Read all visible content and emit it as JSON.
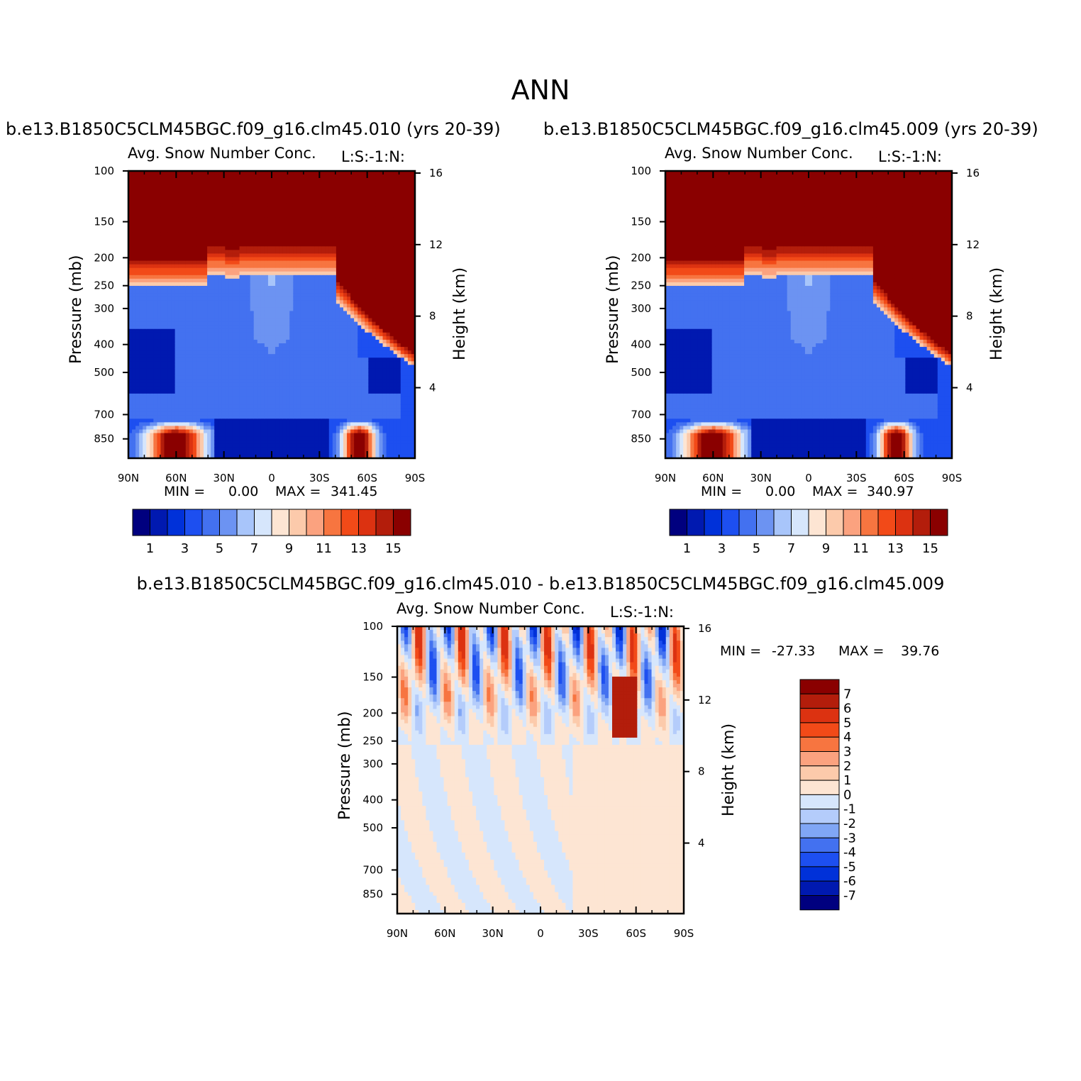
{
  "title": "ANN",
  "panels": [
    {
      "run_title": "b.e13.B1850C5CLM45BGC.f09_g16.clm45.010 (yrs 20-39)",
      "variable_title": "Avg. Snow Number Conc.",
      "corner_label": "L:S:-1:N:",
      "min_label": "MIN =",
      "min_value": "0.00",
      "max_label": "MAX =",
      "max_value": "341.45"
    },
    {
      "run_title": "b.e13.B1850C5CLM45BGC.f09_g16.clm45.009 (yrs 20-39)",
      "variable_title": "Avg. Snow Number Conc.",
      "corner_label": "L:S:-1:N:",
      "min_label": "MIN =",
      "min_value": "0.00",
      "max_label": "MAX =",
      "max_value": "340.97"
    },
    {
      "run_title": "b.e13.B1850C5CLM45BGC.f09_g16.clm45.010 - b.e13.B1850C5CLM45BGC.f09_g16.clm45.009",
      "variable_title": "Avg. Snow Number Conc.",
      "corner_label": "L:S:-1:N:",
      "min_label": "MIN =",
      "min_value": "-27.33",
      "max_label": "MAX =",
      "max_value": "39.76"
    }
  ],
  "axes": {
    "ylabel_left": "Pressure (mb)",
    "ylabel_right": "Height (km)",
    "x_ticks": [
      "90N",
      "60N",
      "30N",
      "0",
      "30S",
      "60S",
      "90S"
    ],
    "pressure_ticks": [
      "100",
      "150",
      "200",
      "250",
      "300",
      "400",
      "500",
      "700",
      "850"
    ],
    "height_ticks": [
      "16",
      "12",
      "8",
      "4"
    ]
  },
  "colors": {
    "abs": [
      "#00007f",
      "#0019b0",
      "#0031d9",
      "#1d4ff0",
      "#4371f0",
      "#6c93f2",
      "#a8c5fa",
      "#d6e6fc",
      "#fde5d3",
      "#fccaab",
      "#fba27f",
      "#f77540",
      "#f24a18",
      "#dc3211",
      "#b31d0b",
      "#8a0000"
    ],
    "diff": [
      "#00007f",
      "#0019b0",
      "#0031d9",
      "#1d4ff0",
      "#4371f0",
      "#80a6f5",
      "#b4ccfb",
      "#d6e6fc",
      "#fde5d3",
      "#fccaab",
      "#fba27f",
      "#f77540",
      "#f24a18",
      "#dc3211",
      "#b31d0b",
      "#8a0000"
    ]
  },
  "colorbars": {
    "abs_labels": [
      "1",
      "3",
      "5",
      "7",
      "9",
      "11",
      "13",
      "15"
    ],
    "diff_labels": [
      "7",
      "6",
      "5",
      "4",
      "3",
      "2",
      "1",
      "0",
      "-1",
      "-2",
      "-3",
      "-4",
      "-5",
      "-6",
      "-7"
    ]
  },
  "chart_data": [
    {
      "type": "heatmap",
      "title": "Avg. Snow Number Conc.",
      "subtitle": "b.e13.B1850C5CLM45BGC.f09_g16.clm45.010 (yrs 20-39)",
      "xlabel": "",
      "ylabel": "Pressure (mb)",
      "ylabel_right": "Height (km)",
      "x_ticks": [
        "90N",
        "60N",
        "30N",
        "0",
        "30S",
        "60S",
        "90S"
      ],
      "y_ticks": [
        100,
        150,
        200,
        250,
        300,
        400,
        500,
        700,
        850
      ],
      "y_right_ticks": [
        16,
        12,
        8,
        4
      ],
      "y_scale": "log-pressure",
      "levels": [
        1,
        2,
        3,
        4,
        5,
        6,
        7,
        8,
        9,
        10,
        11,
        12,
        13,
        14,
        15
      ],
      "min": 0.0,
      "max": 341.45
    },
    {
      "type": "heatmap",
      "title": "Avg. Snow Number Conc.",
      "subtitle": "b.e13.B1850C5CLM45BGC.f09_g16.clm45.009 (yrs 20-39)",
      "xlabel": "",
      "ylabel": "Pressure (mb)",
      "ylabel_right": "Height (km)",
      "x_ticks": [
        "90N",
        "60N",
        "30N",
        "0",
        "30S",
        "60S",
        "90S"
      ],
      "y_ticks": [
        100,
        150,
        200,
        250,
        300,
        400,
        500,
        700,
        850
      ],
      "y_right_ticks": [
        16,
        12,
        8,
        4
      ],
      "y_scale": "log-pressure",
      "levels": [
        1,
        2,
        3,
        4,
        5,
        6,
        7,
        8,
        9,
        10,
        11,
        12,
        13,
        14,
        15
      ],
      "min": 0.0,
      "max": 340.97
    },
    {
      "type": "heatmap",
      "title": "Avg. Snow Number Conc.",
      "subtitle": "b.e13.B1850C5CLM45BGC.f09_g16.clm45.010 - b.e13.B1850C5CLM45BGC.f09_g16.clm45.009",
      "xlabel": "",
      "ylabel": "Pressure (mb)",
      "ylabel_right": "Height (km)",
      "x_ticks": [
        "90N",
        "60N",
        "30N",
        "0",
        "30S",
        "60S",
        "90S"
      ],
      "y_ticks": [
        100,
        150,
        200,
        250,
        300,
        400,
        500,
        700,
        850
      ],
      "y_right_ticks": [
        16,
        12,
        8,
        4
      ],
      "y_scale": "log-pressure",
      "levels": [
        -7,
        -6,
        -5,
        -4,
        -3,
        -2,
        -1,
        0,
        1,
        2,
        3,
        4,
        5,
        6,
        7
      ],
      "min": -27.33,
      "max": 39.76
    }
  ]
}
